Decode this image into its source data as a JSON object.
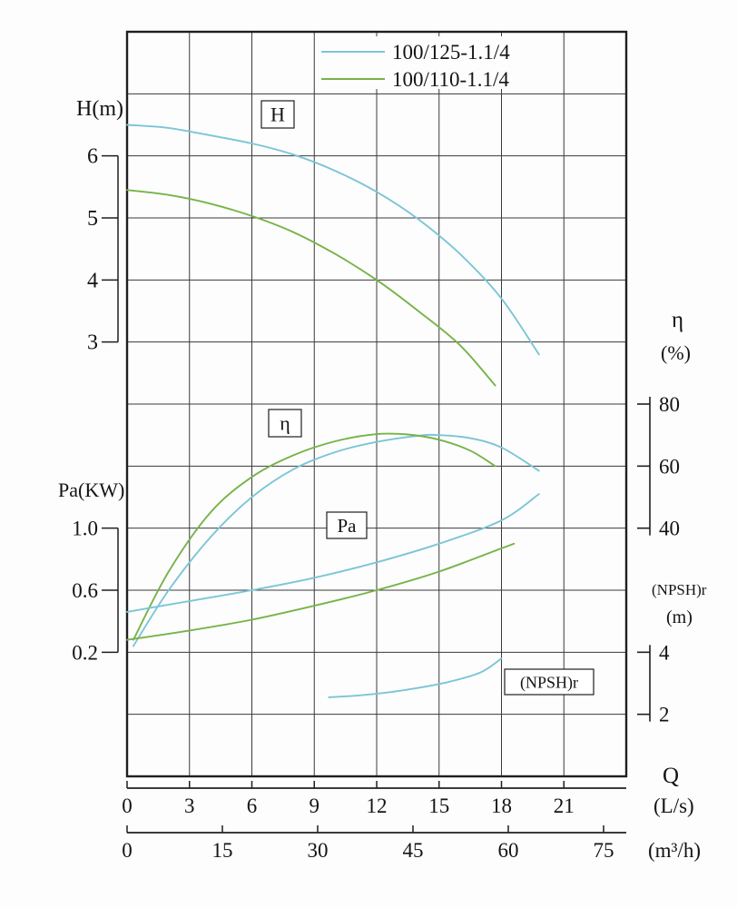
{
  "chart_data": {
    "type": "line",
    "title": "",
    "legend": [
      {
        "label": "100/125-1.1/4",
        "color": "#7cc5d6"
      },
      {
        "label": "100/110-1.1/4",
        "color": "#77b34a"
      }
    ],
    "axes": {
      "x": {
        "label": "Q",
        "unit_primary": "(L/s)",
        "unit_secondary": "(m³/h)",
        "ticks_ls": [
          0,
          3,
          6,
          9,
          12,
          15,
          18,
          21
        ],
        "ticks_m3h": [
          0,
          15,
          30,
          45,
          60,
          75
        ],
        "range_ls": [
          0,
          24
        ]
      },
      "H": {
        "label": "H(m)",
        "ticks": [
          "6",
          "5",
          "4",
          "3"
        ],
        "tick_values": [
          6,
          5,
          4,
          3
        ]
      },
      "Pa": {
        "label": "Pa(KW)",
        "ticks": [
          "1.0",
          "0.6",
          "0.2"
        ],
        "tick_values": [
          1.0,
          0.6,
          0.2
        ]
      },
      "eta": {
        "label": "η",
        "unit": "(%)",
        "ticks": [
          "80",
          "60",
          "40"
        ],
        "tick_values": [
          80,
          60,
          40
        ]
      },
      "npsh": {
        "label": "(NPSH)r",
        "unit": "(m)",
        "ticks": [
          "4",
          "2"
        ],
        "tick_values": [
          4,
          2
        ]
      }
    },
    "curve_labels": [
      {
        "id": "H",
        "text": "H"
      },
      {
        "id": "eta",
        "text": "η"
      },
      {
        "id": "Pa",
        "text": "Pa"
      },
      {
        "id": "npsh",
        "text": "(NPSH)r"
      }
    ],
    "series": [
      {
        "name": "H 100/125-1.1/4",
        "scale": "H",
        "color": "#7cc5d6",
        "points": [
          [
            0,
            6.5
          ],
          [
            2,
            6.45
          ],
          [
            4,
            6.33
          ],
          [
            6,
            6.2
          ],
          [
            8,
            6.02
          ],
          [
            10,
            5.76
          ],
          [
            12,
            5.42
          ],
          [
            14,
            4.98
          ],
          [
            16,
            4.42
          ],
          [
            18,
            3.7
          ],
          [
            19.8,
            2.8
          ]
        ]
      },
      {
        "name": "H 100/110-1.1/4",
        "scale": "H",
        "color": "#77b34a",
        "points": [
          [
            0,
            5.45
          ],
          [
            2,
            5.37
          ],
          [
            4,
            5.23
          ],
          [
            6,
            5.03
          ],
          [
            8,
            4.77
          ],
          [
            10,
            4.42
          ],
          [
            12,
            4.0
          ],
          [
            14,
            3.5
          ],
          [
            16,
            2.95
          ],
          [
            17.7,
            2.3
          ]
        ]
      },
      {
        "name": "eta 100/125-1.1/4",
        "scale": "eta",
        "color": "#7cc5d6",
        "points": [
          [
            0.3,
            2
          ],
          [
            2,
            20
          ],
          [
            4,
            37
          ],
          [
            6,
            50
          ],
          [
            8,
            59
          ],
          [
            10,
            64.5
          ],
          [
            12,
            67.8
          ],
          [
            14,
            69.8
          ],
          [
            15,
            70
          ],
          [
            16.5,
            69
          ],
          [
            18,
            66
          ],
          [
            19.8,
            58.5
          ]
        ]
      },
      {
        "name": "eta 100/110-1.1/4",
        "scale": "eta",
        "color": "#77b34a",
        "points": [
          [
            0.3,
            4
          ],
          [
            2,
            26
          ],
          [
            4,
            45
          ],
          [
            6,
            56.5
          ],
          [
            8,
            63.5
          ],
          [
            10,
            68
          ],
          [
            12,
            70.3
          ],
          [
            13.5,
            70.2
          ],
          [
            15,
            68.5
          ],
          [
            16.5,
            65
          ],
          [
            17.7,
            60
          ]
        ]
      },
      {
        "name": "Pa 100/125-1.1/4",
        "scale": "Pa",
        "color": "#7cc5d6",
        "points": [
          [
            0,
            0.46
          ],
          [
            3,
            0.53
          ],
          [
            6,
            0.6
          ],
          [
            9,
            0.68
          ],
          [
            12,
            0.78
          ],
          [
            15,
            0.9
          ],
          [
            18,
            1.05
          ],
          [
            19.8,
            1.22
          ]
        ]
      },
      {
        "name": "Pa 100/110-1.1/4",
        "scale": "Pa",
        "color": "#77b34a",
        "points": [
          [
            0,
            0.28
          ],
          [
            3,
            0.34
          ],
          [
            6,
            0.41
          ],
          [
            9,
            0.5
          ],
          [
            12,
            0.6
          ],
          [
            15,
            0.72
          ],
          [
            18,
            0.87
          ],
          [
            18.6,
            0.9
          ]
        ]
      },
      {
        "name": "NPSHr 100/125-1.1/4",
        "scale": "npsh",
        "color": "#7cc5d6",
        "points": [
          [
            9.7,
            2.55
          ],
          [
            11,
            2.6
          ],
          [
            12.5,
            2.7
          ],
          [
            14,
            2.85
          ],
          [
            15.5,
            3.05
          ],
          [
            17,
            3.35
          ],
          [
            18,
            3.8
          ]
        ]
      }
    ],
    "grid": true,
    "legend_position": "top-center"
  },
  "colors": {
    "grid": "#3a3a3a",
    "border": "#1f1f1f",
    "text": "#141414",
    "background": "#fdfdfd",
    "label_box_fill": "#ffffff"
  }
}
